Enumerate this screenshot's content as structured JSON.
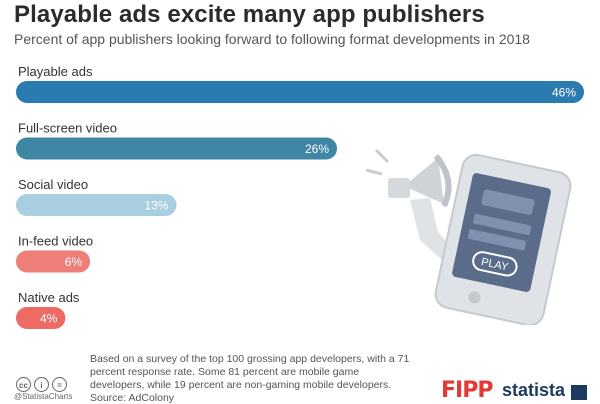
{
  "header": {
    "title": "Playable ads excite many app publishers",
    "subtitle": "Percent of app publishers looking forward to following format developments in 2018"
  },
  "chart_data": {
    "type": "bar",
    "orientation": "horizontal",
    "title": "Playable ads excite many app publishers",
    "subtitle": "Percent of app publishers looking forward to following format developments in 2018",
    "categories": [
      "Playable ads",
      "Full-screen video",
      "Social video",
      "In-feed video",
      "Native ads"
    ],
    "values": [
      46,
      26,
      13,
      6,
      4
    ],
    "value_labels": [
      "46%",
      "26%",
      "13%",
      "6%",
      "4%"
    ],
    "unit": "%",
    "xlim": [
      0,
      46
    ],
    "grid": false,
    "legend": "none",
    "colors": [
      "#2a7bb0",
      "#3f86a5",
      "#a8cfe0",
      "#ee7e77",
      "#ee6a65"
    ]
  },
  "footer": {
    "note": "Based on a survey of the top 100 grossing app developers, with a 71 percent response rate. Some 81 percent are mobile game developers, while 19 percent are non-gaming mobile developers.",
    "source": "Source: AdColony",
    "handle": "@StatistaCharts",
    "brand_left": "FIPP",
    "brand_right": "statista",
    "illustration_text": "PLAY"
  },
  "icons": [
    "cc-icon",
    "info-icon",
    "equal-icon",
    "megaphone-icon",
    "phone-icon"
  ]
}
